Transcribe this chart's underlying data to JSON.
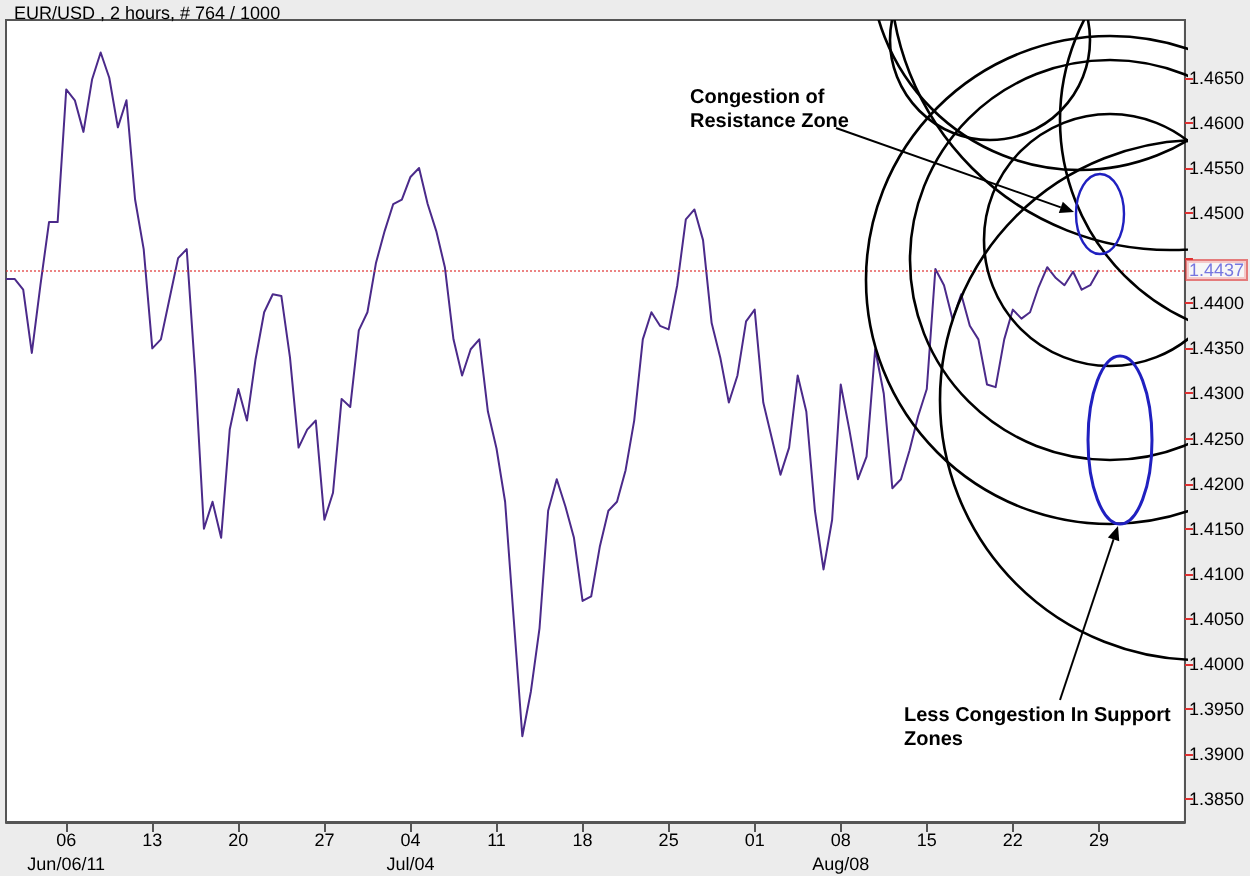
{
  "chart_data": {
    "type": "line",
    "title": "EUR/USD , 2 hours, # 764 / 1000",
    "categories": [
      null,
      null,
      null,
      null,
      null,
      null,
      null,
      "06\nJun/06/11",
      null,
      null,
      null,
      null,
      null,
      null,
      null,
      null,
      null,
      "13",
      null,
      null,
      null,
      null,
      null,
      null,
      null,
      null,
      null,
      "20",
      null,
      null,
      null,
      null,
      null,
      null,
      null,
      null,
      null,
      "27",
      null,
      null,
      null,
      null,
      null,
      null,
      null,
      null,
      null,
      "04\nJul/04",
      null,
      null,
      null,
      null,
      null,
      null,
      null,
      null,
      null,
      "11",
      null,
      null,
      null,
      null,
      null,
      null,
      null,
      null,
      null,
      "18",
      null,
      null,
      null,
      null,
      null,
      null,
      null,
      null,
      null,
      "25",
      null,
      null,
      null,
      null,
      null,
      null,
      null,
      null,
      null,
      "01",
      null,
      null,
      null,
      null,
      null,
      null,
      null,
      null,
      null,
      "08\nAug/08",
      null,
      null,
      null,
      null,
      null,
      null,
      null,
      null,
      null,
      "15",
      null,
      null,
      null,
      null,
      null,
      null,
      null,
      null,
      null,
      "22",
      null,
      null,
      null,
      null,
      null,
      null,
      null,
      null,
      null,
      "29",
      null,
      null,
      null,
      null,
      null,
      null,
      null,
      null,
      null,
      null
    ],
    "series": [
      {
        "color": "#4b2a8a",
        "values": [
          1.4427,
          1.4427,
          1.4415,
          1.4345,
          1.442,
          1.449,
          1.449,
          1.4637,
          1.4625,
          1.459,
          1.4648,
          1.4678,
          1.465,
          1.4595,
          1.4625,
          1.4515,
          1.446,
          1.435,
          1.436,
          1.4405,
          1.445,
          1.446,
          1.432,
          1.415,
          1.418,
          1.414,
          1.426,
          1.4305,
          1.427,
          1.4338,
          1.439,
          1.441,
          1.4408,
          1.434,
          1.424,
          1.426,
          1.427,
          1.416,
          1.419,
          1.4294,
          1.4285,
          1.437,
          1.439,
          1.4445,
          1.448,
          1.451,
          1.4515,
          1.454,
          1.455,
          1.451,
          1.448,
          1.444,
          1.436,
          1.432,
          1.4349,
          1.436,
          1.428,
          1.4239,
          1.418,
          1.405,
          1.392,
          1.397,
          1.404,
          1.417,
          1.4205,
          1.4175,
          1.414,
          1.407,
          1.4075,
          1.413,
          1.417,
          1.418,
          1.4215,
          1.427,
          1.436,
          1.439,
          1.4375,
          1.4371,
          1.442,
          1.4493,
          1.4504,
          1.447,
          1.4378,
          1.434,
          1.429,
          1.432,
          1.438,
          1.4393,
          1.429,
          1.425,
          1.421,
          1.424,
          1.432,
          1.428,
          1.417,
          1.4105,
          1.416,
          1.431,
          1.426,
          1.4205,
          1.423,
          1.4349,
          1.43,
          1.4195,
          1.4205,
          1.4237,
          1.4275,
          1.4305,
          1.4438,
          1.442,
          1.4382,
          1.441,
          1.4375,
          1.436,
          1.431,
          1.4307,
          1.436,
          1.4393,
          1.4383,
          1.439,
          1.4418,
          1.444,
          1.4428,
          1.442,
          1.4435,
          1.4415,
          1.442,
          1.4437,
          null,
          null,
          null,
          null,
          null,
          null,
          null,
          null,
          null,
          null
        ]
      }
    ],
    "ylim": [
      1.3825,
      1.4714
    ],
    "yticks": [
      {
        "value": 1.385,
        "label": "1.3850"
      },
      {
        "value": 1.39,
        "label": "1.3900"
      },
      {
        "value": 1.395,
        "label": "1.3950"
      },
      {
        "value": 1.4,
        "label": "1.4000"
      },
      {
        "value": 1.405,
        "label": "1.4050"
      },
      {
        "value": 1.41,
        "label": "1.4100"
      },
      {
        "value": 1.415,
        "label": "1.4150"
      },
      {
        "value": 1.42,
        "label": "1.4200"
      },
      {
        "value": 1.425,
        "label": "1.4250"
      },
      {
        "value": 1.43,
        "label": "1.4300"
      },
      {
        "value": 1.435,
        "label": "1.4350"
      },
      {
        "value": 1.44,
        "label": "1.4400"
      },
      {
        "value": 1.445,
        "label": null
      },
      {
        "value": 1.45,
        "label": "1.4500"
      },
      {
        "value": 1.455,
        "label": "1.4550"
      },
      {
        "value": 1.46,
        "label": "1.4600"
      },
      {
        "value": 1.465,
        "label": "1.4650"
      }
    ],
    "ref_lines": [
      {
        "axis": "y",
        "value": 1.4437,
        "label": "1.4437",
        "color": "#e03030",
        "line_style": "dotted"
      }
    ],
    "annotations": [
      "Congestion of\nResistance Zone",
      "Less Congestion In Support\nZones"
    ],
    "grid": false,
    "marker": "none",
    "line_style": "solid"
  }
}
